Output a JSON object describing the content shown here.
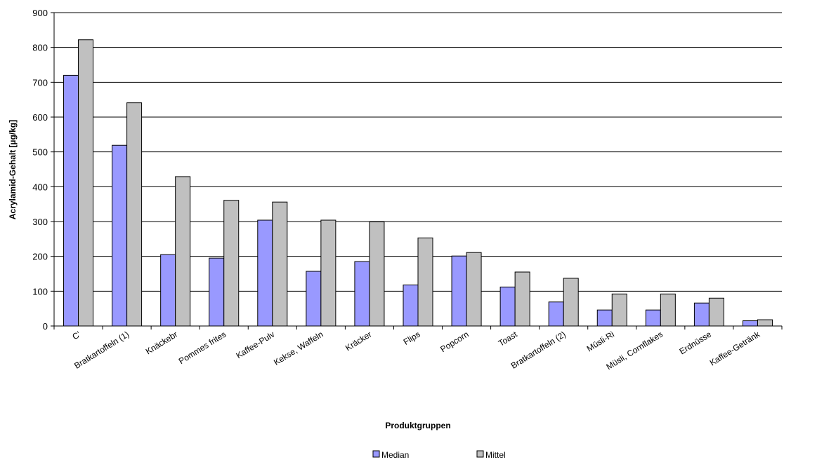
{
  "chart_data": {
    "type": "bar",
    "title": "",
    "xlabel": "Produktgruppen",
    "ylabel": "Acrylamid-Gehalt [µg/kg]",
    "ylim": [
      0,
      900
    ],
    "yticks": [
      "0",
      "100",
      "200",
      "300",
      "400",
      "500",
      "600",
      "700",
      "800",
      "900"
    ],
    "grid": true,
    "legend_position": "bottom",
    "categories": [
      "C'",
      "Bratkartoffeln (1)",
      "Knäckebr",
      "Pommes frites",
      "Kaffee-Pulv",
      "Kekse, Waffeln",
      "Kräcker",
      "Flips",
      "Popcorn",
      "Toast",
      "Bratkartoffeln (2)",
      "Müsli-Ri",
      "Müsli, Cornflakes",
      "Erdnüsse",
      "Kaffee-Getränk"
    ],
    "series": [
      {
        "name": "Median",
        "color": "#9999ff",
        "values": [
          720,
          519,
          205,
          195,
          304,
          157,
          185,
          118,
          201,
          112,
          69,
          46,
          46,
          66,
          15
        ]
      },
      {
        "name": "Mittel",
        "color": "#c0c0c0",
        "values": [
          822,
          641,
          429,
          361,
          356,
          304,
          299,
          253,
          211,
          155,
          137,
          92,
          92,
          80,
          18
        ]
      }
    ]
  }
}
